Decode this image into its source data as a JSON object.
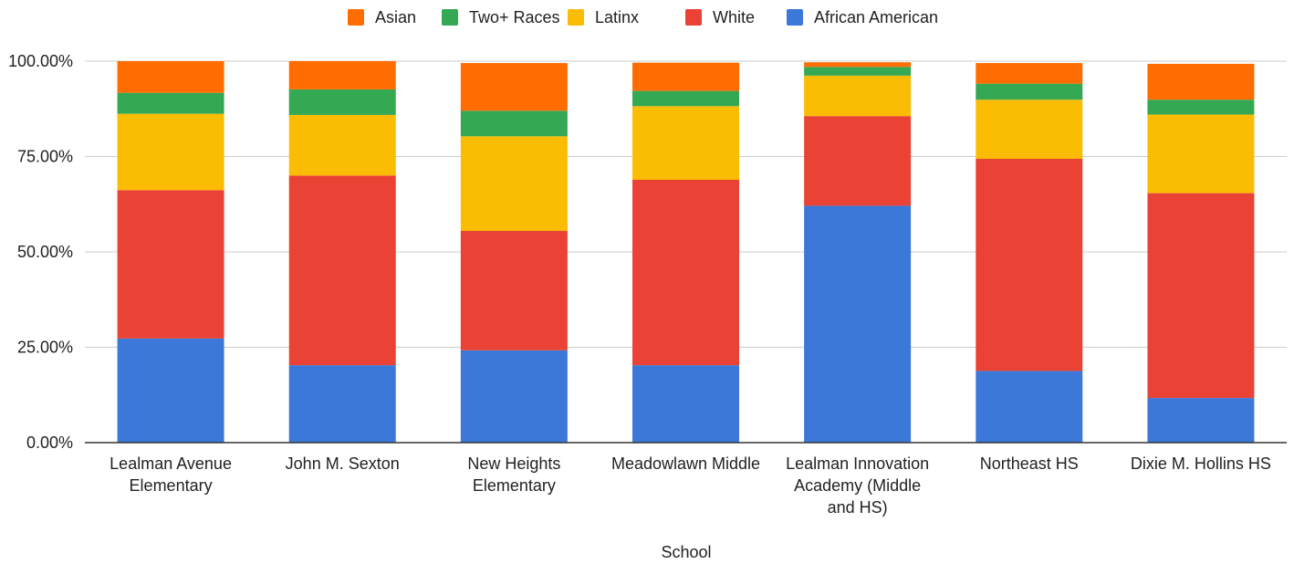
{
  "chart_data": {
    "type": "bar",
    "stacked": true,
    "xlabel": "School",
    "ylabel": "",
    "ylim": [
      0,
      100
    ],
    "yticks": [
      "0.00%",
      "25.00%",
      "50.00%",
      "75.00%",
      "100.00%"
    ],
    "grid": true,
    "legend_position": "top",
    "categories": [
      [
        "Lealman Avenue",
        "Elementary"
      ],
      [
        "John M. Sexton"
      ],
      [
        "New Heights",
        "Elementary"
      ],
      [
        "Meadowlawn Middle"
      ],
      [
        "Lealman Innovation",
        "Academy (Middle",
        "and HS)"
      ],
      [
        "Northeast HS"
      ],
      [
        "Dixie M. Hollins HS"
      ]
    ],
    "legend_order": [
      "Asian",
      "Two+ Races",
      "Latinx",
      "White",
      "African American"
    ],
    "series": [
      {
        "name": "African American",
        "color": "#3c78d8",
        "values": [
          27.3,
          20.3,
          24.2,
          20.3,
          62.1,
          18.8,
          11.7
        ]
      },
      {
        "name": "White",
        "color": "#ea4335",
        "values": [
          38.9,
          49.7,
          31.3,
          48.6,
          23.5,
          55.6,
          53.7
        ]
      },
      {
        "name": "Latinx",
        "color": "#fbbc04",
        "values": [
          20.0,
          15.9,
          24.8,
          19.3,
          10.6,
          15.5,
          20.6
        ]
      },
      {
        "name": "Two+ Races",
        "color": "#34a853",
        "values": [
          5.5,
          6.7,
          6.7,
          4.0,
          2.3,
          4.2,
          3.9
        ]
      },
      {
        "name": "Asian",
        "color": "#ff6d01",
        "values": [
          8.3,
          7.4,
          12.5,
          7.4,
          1.2,
          5.4,
          9.4
        ]
      }
    ]
  }
}
